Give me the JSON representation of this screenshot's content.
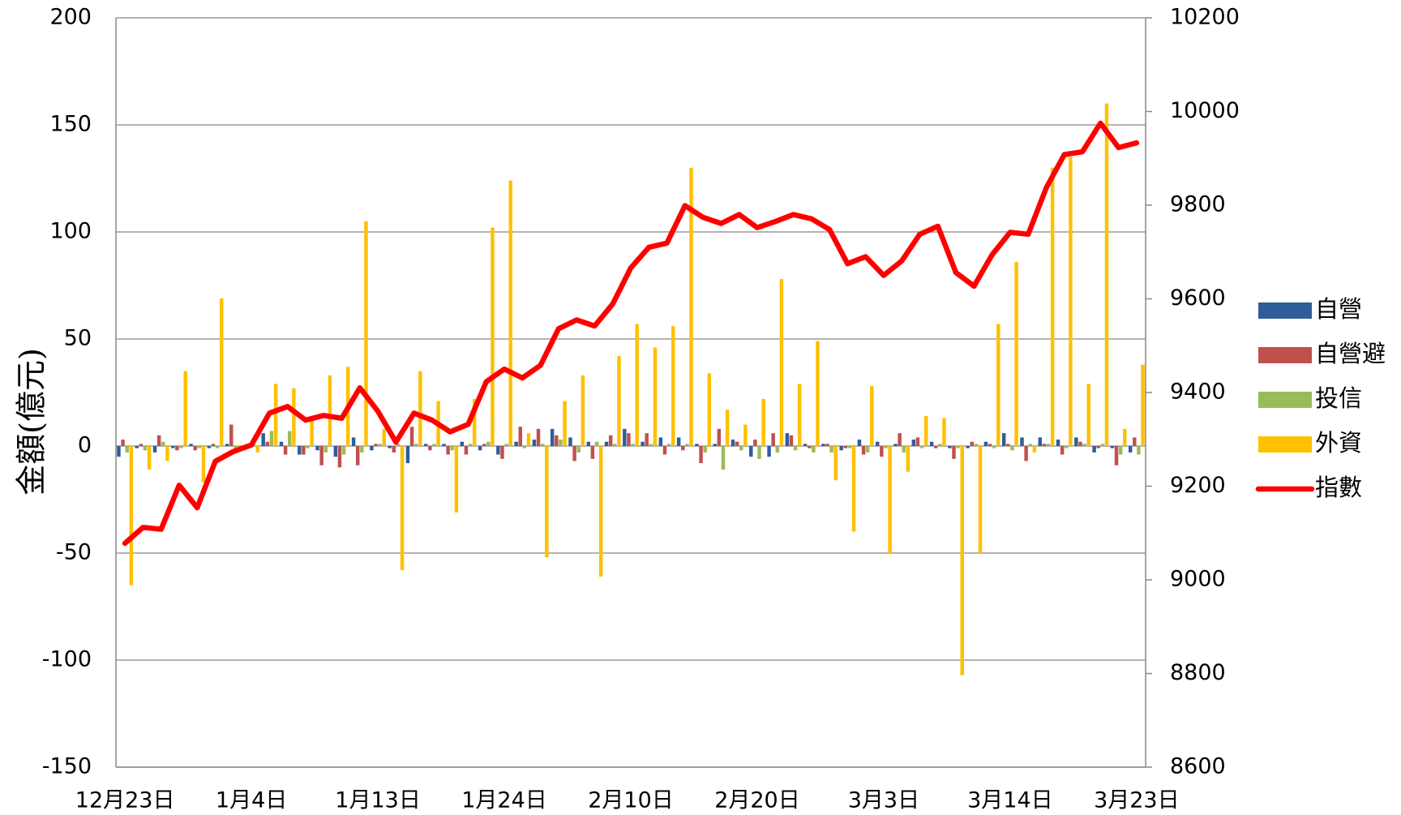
{
  "chart_data": {
    "type": "bar",
    "y_label": "金額(億元)",
    "categories": [
      "12月23日",
      null,
      null,
      null,
      null,
      null,
      null,
      "1月4日",
      null,
      null,
      null,
      null,
      null,
      null,
      "1月13日",
      null,
      null,
      null,
      null,
      null,
      null,
      "1月24日",
      null,
      null,
      null,
      null,
      null,
      null,
      "2月10日",
      null,
      null,
      null,
      null,
      null,
      null,
      "2月20日",
      null,
      null,
      null,
      null,
      null,
      null,
      "3月3日",
      null,
      null,
      null,
      null,
      null,
      null,
      "3月14日",
      null,
      null,
      null,
      null,
      null,
      null,
      "3月23日"
    ],
    "ylim": [
      -150,
      200
    ],
    "yticks": [
      -150,
      -100,
      -50,
      0,
      50,
      100,
      150,
      200
    ],
    "y2lim": [
      8600,
      10200
    ],
    "y2ticks": [
      8600,
      8800,
      9000,
      9200,
      9400,
      9600,
      9800,
      10000,
      10200
    ],
    "grid": true,
    "legend": "right",
    "series": [
      {
        "name": "自營",
        "type": "bar",
        "color": "#2e5d9a",
        "values": [
          -5,
          -1,
          -3,
          -1,
          1,
          -1,
          1,
          -1,
          6,
          2,
          -4,
          -2,
          -5,
          4,
          -2,
          -1,
          -8,
          1,
          1,
          2,
          -2,
          -4,
          2,
          3,
          8,
          4,
          2,
          2,
          8,
          2,
          4,
          4,
          1,
          1,
          3,
          -5,
          -5,
          6,
          1,
          1,
          -2,
          3,
          2,
          1,
          3,
          2,
          -1,
          -1,
          2,
          6,
          4,
          4,
          3,
          4,
          -3,
          -1,
          -3
        ]
      },
      {
        "name": "自營避",
        "type": "bar",
        "color": "#c0504d",
        "values": [
          3,
          1,
          5,
          -2,
          -2,
          1,
          10,
          1,
          2,
          -4,
          -4,
          -9,
          -10,
          -9,
          1,
          -3,
          9,
          -2,
          -4,
          -4,
          1,
          -6,
          9,
          8,
          5,
          -7,
          -6,
          5,
          6,
          6,
          -4,
          -2,
          -8,
          8,
          2,
          3,
          6,
          5,
          -1,
          1,
          -1,
          -4,
          -5,
          6,
          4,
          -1,
          -6,
          2,
          1,
          1,
          -7,
          1,
          -4,
          2,
          -1,
          -9,
          4
        ]
      },
      {
        "name": "投信",
        "type": "bar",
        "color": "#9bbb59",
        "values": [
          -3,
          -2,
          2,
          -1,
          -1,
          -1,
          -1,
          1,
          7,
          7,
          -1,
          -3,
          -4,
          -3,
          1,
          1,
          1,
          1,
          -2,
          1,
          2,
          1,
          -1,
          1,
          3,
          -3,
          2,
          1,
          1,
          1,
          1,
          1,
          -3,
          -11,
          -2,
          -6,
          -3,
          -2,
          -3,
          -3,
          -1,
          -3,
          -1,
          -3,
          -1,
          1,
          -1,
          1,
          -1,
          -2,
          1,
          1,
          -1,
          1,
          1,
          -4,
          -4
        ]
      },
      {
        "name": "外資",
        "type": "bar",
        "color": "#ffc000",
        "values": [
          -65,
          -11,
          -7,
          35,
          -17,
          69,
          -1,
          -3,
          29,
          27,
          12,
          33,
          37,
          105,
          8,
          -58,
          35,
          21,
          -31,
          22,
          102,
          124,
          6,
          -52,
          21,
          33,
          -61,
          42,
          57,
          46,
          56,
          130,
          34,
          17,
          10,
          22,
          78,
          29,
          49,
          -16,
          -40,
          28,
          -50,
          -12,
          14,
          13,
          -107,
          -50,
          57,
          86,
          -3,
          130,
          135,
          29,
          160,
          8,
          38
        ]
      },
      {
        "name": "指數",
        "type": "line",
        "axis": "y2",
        "color": "#ff0000",
        "values": [
          9078,
          9112,
          9108,
          9202,
          9154,
          9253,
          9274,
          9288,
          9356,
          9370,
          9341,
          9351,
          9345,
          9410,
          9360,
          9294,
          9356,
          9341,
          9316,
          9332,
          9423,
          9450,
          9431,
          9458,
          9536,
          9555,
          9542,
          9589,
          9666,
          9710,
          9719,
          9799,
          9774,
          9761,
          9780,
          9752,
          9765,
          9780,
          9771,
          9748,
          9675,
          9690,
          9650,
          9681,
          9738,
          9755,
          9656,
          9627,
          9694,
          9742,
          9738,
          9837,
          9908,
          9914,
          9975,
          9923,
          9933
        ]
      }
    ]
  }
}
